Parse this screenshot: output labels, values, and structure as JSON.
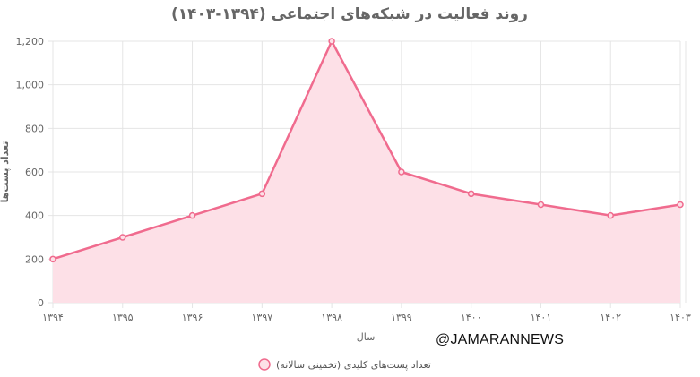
{
  "chart_data": {
    "type": "area",
    "title": "روند فعالیت در شبکه‌های اجتماعی (۱۳۹۴-۱۴۰۳)",
    "xlabel": "سال",
    "ylabel": "تعداد پست‌ها",
    "categories": [
      "۱۳۹۴",
      "۱۳۹۵",
      "۱۳۹۶",
      "۱۳۹۷",
      "۱۳۹۸",
      "۱۳۹۹",
      "۱۴۰۰",
      "۱۴۰۱",
      "۱۴۰۲",
      "۱۴۰۳"
    ],
    "series": [
      {
        "name": "تعداد پست‌های کلیدی (تخمینی سالانه)",
        "values": [
          200,
          300,
          400,
          500,
          1200,
          600,
          500,
          450,
          400,
          450
        ]
      }
    ],
    "ylim": [
      0,
      1200
    ],
    "yticks": [
      0,
      200,
      400,
      600,
      800,
      1000,
      1200
    ],
    "ytick_labels": [
      "0",
      "200",
      "400",
      "600",
      "800",
      "1,000",
      "1,200"
    ],
    "grid": true,
    "legend_position": "bottom",
    "line_color": "#f06b8e",
    "fill_color": "#fde0e7"
  },
  "watermark": "@JAMARANNEWS"
}
